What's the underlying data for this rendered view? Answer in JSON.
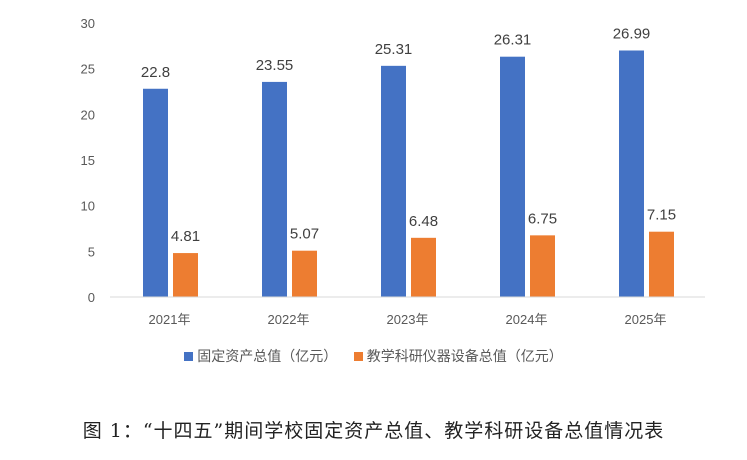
{
  "chart_data": {
    "type": "bar",
    "categories": [
      "2021年",
      "2022年",
      "2023年",
      "2024年",
      "2025年"
    ],
    "series": [
      {
        "name": "固定资产总值（亿元）",
        "color": "#4472C4",
        "values": [
          22.8,
          23.55,
          25.31,
          26.31,
          26.99
        ],
        "labels": [
          "22.8",
          "23.55",
          "25.31",
          "26.31",
          "26.99"
        ]
      },
      {
        "name": "教学科研仪器设备总值（亿元）",
        "color": "#ED7D31",
        "values": [
          4.81,
          5.07,
          6.48,
          6.75,
          7.15
        ],
        "labels": [
          "4.81",
          "5.07",
          "6.48",
          "6.75",
          "7.15"
        ]
      }
    ],
    "ylim": [
      0,
      30
    ],
    "yticks": [
      "0",
      "5",
      "10",
      "15",
      "20",
      "25",
      "30"
    ],
    "grid": false,
    "legend_position": "bottom"
  },
  "caption": "图 1：“十四五”期间学校固定资产总值、教学科研设备总值情况表"
}
